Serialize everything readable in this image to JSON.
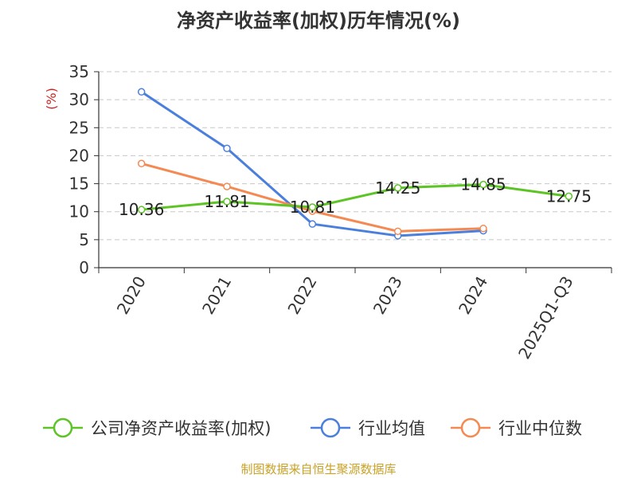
{
  "chart_data": {
    "type": "line",
    "title": "净资产收益率(加权)历年情况(%)",
    "ylabel": "(%)",
    "xlabel": "",
    "categories": [
      "2020",
      "2021",
      "2022",
      "2023",
      "2024",
      "2025Q1-Q3"
    ],
    "ylim": [
      0,
      35
    ],
    "yticks": [
      0,
      5,
      10,
      15,
      20,
      25,
      30,
      35
    ],
    "grid": true,
    "legend_position": "bottom",
    "series": [
      {
        "name": "公司净资产收益率(加权)",
        "color": "#5cc424",
        "values": [
          10.36,
          11.81,
          10.81,
          14.25,
          14.85,
          12.75
        ],
        "labels": [
          "10.36",
          "11.81",
          "10.81",
          "14.25",
          "14.85",
          "12.75"
        ]
      },
      {
        "name": "行业均值",
        "color": "#4b7fdc",
        "values": [
          31.4,
          21.3,
          7.8,
          5.7,
          6.6,
          null
        ]
      },
      {
        "name": "行业中位数",
        "color": "#f48a52",
        "values": [
          18.6,
          14.5,
          10.1,
          6.5,
          7.0,
          null
        ]
      }
    ]
  },
  "source": "制图数据来自恒生聚源数据库"
}
